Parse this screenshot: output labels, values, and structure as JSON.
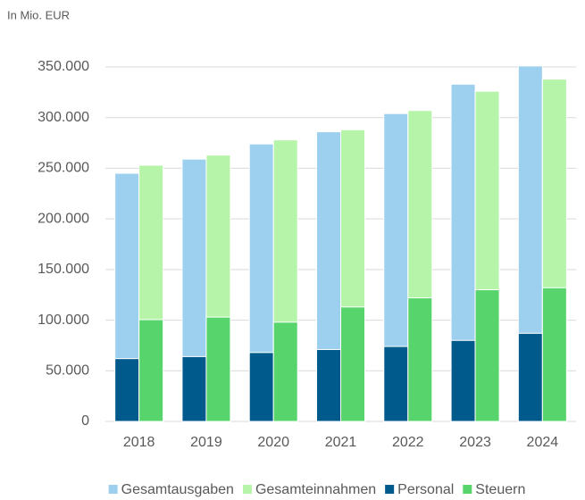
{
  "chart_data": {
    "type": "bar",
    "y_axis_label": "In Mio. EUR",
    "categories": [
      "2018",
      "2019",
      "2020",
      "2021",
      "2022",
      "2023",
      "2024"
    ],
    "series": [
      {
        "name": "Gesamtausgaben",
        "color": "#9dd0ee",
        "values": [
          245000,
          259000,
          274000,
          286000,
          304000,
          333000,
          351000
        ]
      },
      {
        "name": "Gesamteinnahmen",
        "color": "#b6f5a9",
        "values": [
          253000,
          263000,
          278000,
          288000,
          307000,
          326000,
          338000
        ]
      },
      {
        "name": "Personal",
        "color": "#005a8c",
        "values": [
          62000,
          64000,
          68000,
          71000,
          74000,
          80000,
          87000
        ]
      },
      {
        "name": "Steuern",
        "color": "#57d46b",
        "values": [
          100500,
          103000,
          98000,
          113000,
          122000,
          130000,
          132000
        ]
      }
    ],
    "ylim": [
      0,
      350000
    ],
    "yticks": [
      0,
      {
        "value": 50000,
        "label": "50.000"
      },
      {
        "value": 100000,
        "label": "100.000"
      },
      {
        "value": 150000,
        "label": "150.000"
      },
      {
        "value": 200000,
        "label": "200.000"
      },
      {
        "value": 250000,
        "label": "250.000"
      },
      {
        "value": 300000,
        "label": "300.000"
      },
      {
        "value": 350000,
        "label": "350.000"
      }
    ],
    "grid": true
  }
}
